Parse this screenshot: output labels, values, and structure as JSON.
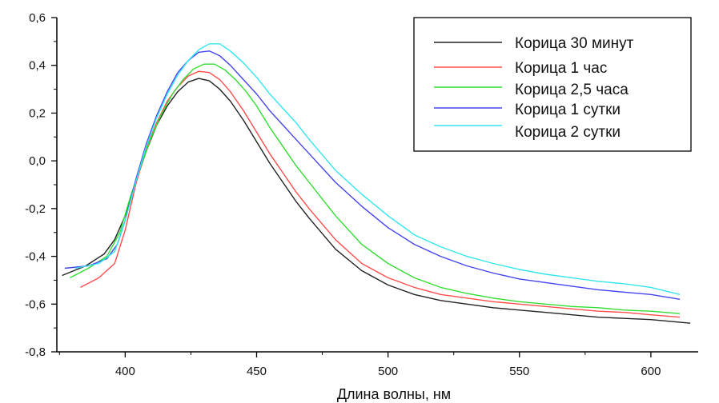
{
  "chart_data": {
    "type": "line",
    "title": "",
    "xlabel": "Длина волны, нм",
    "ylabel": "",
    "xlim": [
      374,
      618
    ],
    "ylim": [
      -0.8,
      0.6
    ],
    "x_ticks": [
      400,
      450,
      500,
      550,
      600
    ],
    "x_tick_labels": [
      "400",
      "450",
      "500",
      "550",
      "600"
    ],
    "y_ticks": [
      0.6,
      0.4,
      0.2,
      0.0,
      -0.2,
      -0.4,
      -0.6,
      -0.8
    ],
    "y_tick_labels": [
      "0,6",
      "0,4",
      "0,2",
      "0,0",
      "-0,2",
      "-0,4",
      "-0,6",
      "-0,8"
    ],
    "grid": false,
    "legend_position": "top-right",
    "series": [
      {
        "name": "Корица 30 минут",
        "color": "#222222",
        "x": [
          376,
          385,
          392,
          396,
          400,
          404,
          408,
          412,
          416,
          420,
          424,
          428,
          432,
          436,
          440,
          445,
          450,
          455,
          460,
          465,
          470,
          480,
          490,
          500,
          510,
          520,
          530,
          540,
          550,
          560,
          570,
          580,
          590,
          600,
          610,
          615
        ],
        "y": [
          -0.48,
          -0.44,
          -0.39,
          -0.33,
          -0.23,
          -0.09,
          0.04,
          0.15,
          0.23,
          0.29,
          0.33,
          0.345,
          0.335,
          0.3,
          0.25,
          0.17,
          0.08,
          -0.01,
          -0.09,
          -0.17,
          -0.24,
          -0.37,
          -0.46,
          -0.52,
          -0.56,
          -0.585,
          -0.6,
          -0.615,
          -0.625,
          -0.635,
          -0.645,
          -0.655,
          -0.66,
          -0.665,
          -0.675,
          -0.68
        ]
      },
      {
        "name": "Корица 1 час",
        "color": "#ff4d4d",
        "x": [
          383,
          390,
          396,
          400,
          404,
          408,
          412,
          416,
          420,
          424,
          428,
          432,
          436,
          440,
          445,
          450,
          455,
          460,
          465,
          470,
          480,
          490,
          500,
          510,
          520,
          530,
          540,
          550,
          560,
          570,
          580,
          590,
          600,
          611
        ],
        "y": [
          -0.53,
          -0.49,
          -0.43,
          -0.29,
          -0.1,
          0.05,
          0.16,
          0.25,
          0.31,
          0.355,
          0.375,
          0.37,
          0.34,
          0.29,
          0.21,
          0.12,
          0.03,
          -0.05,
          -0.13,
          -0.2,
          -0.33,
          -0.43,
          -0.49,
          -0.53,
          -0.56,
          -0.575,
          -0.59,
          -0.6,
          -0.61,
          -0.62,
          -0.63,
          -0.635,
          -0.645,
          -0.655
        ]
      },
      {
        "name": "Корица 2,5 часа",
        "color": "#33dd33",
        "x": [
          379,
          386,
          393,
          398,
          402,
          406,
          410,
          414,
          418,
          422,
          426,
          430,
          434,
          438,
          442,
          446,
          450,
          455,
          460,
          465,
          470,
          480,
          490,
          500,
          510,
          520,
          530,
          540,
          550,
          560,
          570,
          580,
          590,
          600,
          611
        ],
        "y": [
          -0.49,
          -0.45,
          -0.4,
          -0.3,
          -0.15,
          -0.02,
          0.1,
          0.2,
          0.28,
          0.34,
          0.385,
          0.405,
          0.405,
          0.38,
          0.34,
          0.29,
          0.23,
          0.14,
          0.06,
          -0.02,
          -0.09,
          -0.23,
          -0.35,
          -0.43,
          -0.49,
          -0.53,
          -0.555,
          -0.575,
          -0.59,
          -0.6,
          -0.61,
          -0.615,
          -0.625,
          -0.63,
          -0.64
        ]
      },
      {
        "name": "Корица 1 сутки",
        "color": "#4444ee",
        "x": [
          377,
          386,
          393,
          397,
          400,
          404,
          408,
          412,
          416,
          420,
          424,
          428,
          432,
          436,
          440,
          445,
          450,
          455,
          460,
          465,
          470,
          480,
          490,
          500,
          510,
          520,
          530,
          540,
          550,
          560,
          570,
          580,
          590,
          600,
          611
        ],
        "y": [
          -0.45,
          -0.44,
          -0.41,
          -0.35,
          -0.25,
          -0.08,
          0.07,
          0.19,
          0.29,
          0.37,
          0.42,
          0.455,
          0.46,
          0.44,
          0.4,
          0.34,
          0.28,
          0.21,
          0.15,
          0.09,
          0.03,
          -0.09,
          -0.19,
          -0.28,
          -0.35,
          -0.4,
          -0.44,
          -0.47,
          -0.495,
          -0.51,
          -0.525,
          -0.54,
          -0.55,
          -0.56,
          -0.58
        ]
      },
      {
        "name": "Корица 2 сутки",
        "color": "#33e5ee",
        "x": [
          381,
          390,
          396,
          400,
          404,
          408,
          412,
          416,
          420,
          424,
          428,
          432,
          436,
          440,
          445,
          450,
          455,
          460,
          465,
          470,
          480,
          490,
          500,
          510,
          520,
          530,
          540,
          550,
          560,
          570,
          580,
          590,
          600,
          611
        ],
        "y": [
          -0.45,
          -0.43,
          -0.38,
          -0.25,
          -0.09,
          0.06,
          0.18,
          0.28,
          0.36,
          0.42,
          0.465,
          0.49,
          0.49,
          0.46,
          0.41,
          0.35,
          0.28,
          0.22,
          0.16,
          0.09,
          -0.04,
          -0.14,
          -0.23,
          -0.31,
          -0.36,
          -0.4,
          -0.43,
          -0.455,
          -0.475,
          -0.49,
          -0.505,
          -0.515,
          -0.53,
          -0.56
        ]
      }
    ]
  }
}
